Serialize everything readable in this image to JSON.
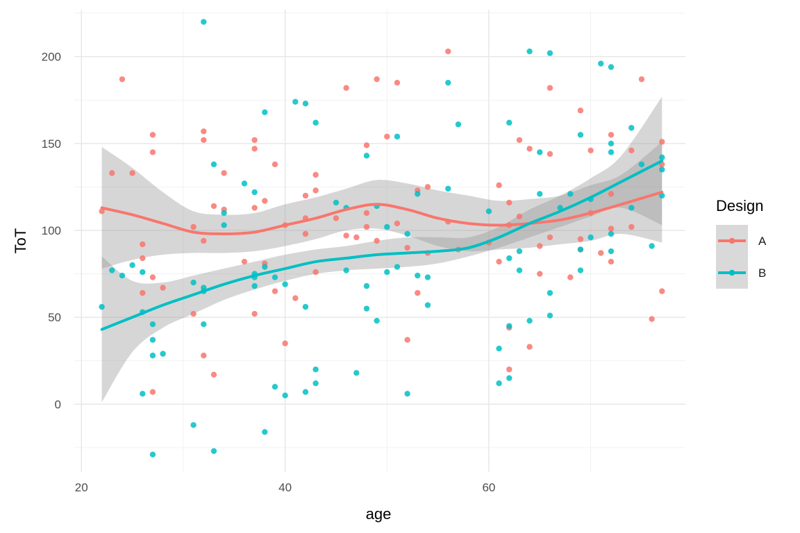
{
  "chart_data": {
    "type": "scatter",
    "title": "",
    "xlabel": "age",
    "ylabel": "ToT",
    "xlim": [
      19.3,
      79.3
    ],
    "ylim": [
      -39,
      227
    ],
    "x_ticks": [
      20,
      40,
      60
    ],
    "y_ticks": [
      0,
      50,
      100,
      150,
      200
    ],
    "grid": true,
    "legend": {
      "title": "Design",
      "position": "right"
    },
    "series": [
      {
        "name": "A",
        "color": "#F8766D",
        "points": [
          [
            22,
            111
          ],
          [
            23,
            133
          ],
          [
            24,
            187
          ],
          [
            25,
            133
          ],
          [
            26,
            92
          ],
          [
            26,
            84
          ],
          [
            26,
            64
          ],
          [
            27,
            155
          ],
          [
            27,
            145
          ],
          [
            27,
            73
          ],
          [
            27,
            7
          ],
          [
            28,
            67
          ],
          [
            31,
            102
          ],
          [
            31,
            52
          ],
          [
            32,
            157
          ],
          [
            32,
            152
          ],
          [
            32,
            94
          ],
          [
            32,
            28
          ],
          [
            33,
            114
          ],
          [
            33,
            17
          ],
          [
            34,
            133
          ],
          [
            34,
            112
          ],
          [
            36,
            82
          ],
          [
            37,
            152
          ],
          [
            37,
            147
          ],
          [
            37,
            113
          ],
          [
            37,
            52
          ],
          [
            38,
            117
          ],
          [
            38,
            81
          ],
          [
            39,
            138
          ],
          [
            39,
            65
          ],
          [
            40,
            103
          ],
          [
            40,
            35
          ],
          [
            41,
            61
          ],
          [
            42,
            120
          ],
          [
            42,
            107
          ],
          [
            42,
            98
          ],
          [
            43,
            132
          ],
          [
            43,
            123
          ],
          [
            43,
            76
          ],
          [
            45,
            107
          ],
          [
            46,
            182
          ],
          [
            46,
            97
          ],
          [
            47,
            96
          ],
          [
            48,
            149
          ],
          [
            48,
            110
          ],
          [
            48,
            102
          ],
          [
            49,
            187
          ],
          [
            49,
            94
          ],
          [
            50,
            154
          ],
          [
            51,
            185
          ],
          [
            51,
            104
          ],
          [
            52,
            37
          ],
          [
            52,
            90
          ],
          [
            53,
            123
          ],
          [
            53,
            64
          ],
          [
            54,
            125
          ],
          [
            54,
            87
          ],
          [
            56,
            203
          ],
          [
            56,
            105
          ],
          [
            57,
            89
          ],
          [
            60,
            93
          ],
          [
            61,
            126
          ],
          [
            61,
            82
          ],
          [
            62,
            116
          ],
          [
            62,
            103
          ],
          [
            62,
            44
          ],
          [
            62,
            20
          ],
          [
            63,
            152
          ],
          [
            63,
            108
          ],
          [
            64,
            147
          ],
          [
            64,
            33
          ],
          [
            65,
            91
          ],
          [
            65,
            75
          ],
          [
            66,
            182
          ],
          [
            66,
            144
          ],
          [
            66,
            96
          ],
          [
            68,
            73
          ],
          [
            69,
            169
          ],
          [
            69,
            95
          ],
          [
            69,
            89
          ],
          [
            70,
            146
          ],
          [
            70,
            110
          ],
          [
            71,
            87
          ],
          [
            72,
            155
          ],
          [
            72,
            121
          ],
          [
            72,
            101
          ],
          [
            72,
            82
          ],
          [
            74,
            146
          ],
          [
            74,
            102
          ],
          [
            75,
            187
          ],
          [
            76,
            49
          ],
          [
            77,
            151
          ],
          [
            77,
            138
          ],
          [
            77,
            65
          ]
        ],
        "smooth": {
          "x": [
            22,
            25,
            28,
            31,
            34,
            37,
            40,
            43,
            46,
            49,
            52,
            55,
            58,
            61,
            64,
            67,
            70,
            73,
            77
          ],
          "y": [
            113,
            109,
            104,
            99,
            98,
            99,
            103,
            107,
            112,
            115,
            112,
            107,
            104,
            103,
            104,
            106,
            110,
            115,
            122
          ],
          "lower": [
            78,
            83,
            86,
            87,
            87,
            88,
            91,
            95,
            100,
            101,
            97,
            91,
            88,
            89,
            90,
            92,
            94,
            98,
            93
          ],
          "upper": [
            148,
            136,
            122,
            111,
            109,
            110,
            115,
            119,
            124,
            129,
            127,
            123,
            120,
            117,
            118,
            120,
            126,
            132,
            151
          ]
        }
      },
      {
        "name": "B",
        "color": "#00BFC4",
        "points": [
          [
            22,
            56
          ],
          [
            23,
            77
          ],
          [
            24,
            74
          ],
          [
            25,
            80
          ],
          [
            26,
            76
          ],
          [
            26,
            53
          ],
          [
            26,
            6
          ],
          [
            27,
            46
          ],
          [
            27,
            37
          ],
          [
            27,
            28
          ],
          [
            27,
            -29
          ],
          [
            28,
            29
          ],
          [
            31,
            70
          ],
          [
            31,
            -12
          ],
          [
            32,
            220
          ],
          [
            32,
            67
          ],
          [
            32,
            65
          ],
          [
            32,
            46
          ],
          [
            33,
            138
          ],
          [
            33,
            -27
          ],
          [
            34,
            110
          ],
          [
            34,
            103
          ],
          [
            36,
            127
          ],
          [
            37,
            122
          ],
          [
            37,
            75
          ],
          [
            37,
            73
          ],
          [
            37,
            68
          ],
          [
            38,
            168
          ],
          [
            38,
            79
          ],
          [
            38,
            -16
          ],
          [
            39,
            73
          ],
          [
            39,
            10
          ],
          [
            40,
            69
          ],
          [
            40,
            5
          ],
          [
            41,
            174
          ],
          [
            42,
            173
          ],
          [
            42,
            56
          ],
          [
            42,
            7
          ],
          [
            43,
            162
          ],
          [
            43,
            20
          ],
          [
            43,
            12
          ],
          [
            45,
            116
          ],
          [
            46,
            113
          ],
          [
            46,
            77
          ],
          [
            47,
            18
          ],
          [
            48,
            143
          ],
          [
            48,
            68
          ],
          [
            48,
            55
          ],
          [
            49,
            114
          ],
          [
            49,
            48
          ],
          [
            50,
            102
          ],
          [
            50,
            76
          ],
          [
            51,
            154
          ],
          [
            51,
            79
          ],
          [
            52,
            98
          ],
          [
            52,
            6
          ],
          [
            53,
            121
          ],
          [
            53,
            74
          ],
          [
            54,
            73
          ],
          [
            54,
            57
          ],
          [
            56,
            185
          ],
          [
            56,
            124
          ],
          [
            57,
            161
          ],
          [
            60,
            111
          ],
          [
            61,
            32
          ],
          [
            61,
            12
          ],
          [
            62,
            162
          ],
          [
            62,
            84
          ],
          [
            62,
            45
          ],
          [
            62,
            15
          ],
          [
            63,
            88
          ],
          [
            63,
            77
          ],
          [
            64,
            203
          ],
          [
            64,
            48
          ],
          [
            65,
            145
          ],
          [
            65,
            121
          ],
          [
            66,
            202
          ],
          [
            66,
            64
          ],
          [
            66,
            51
          ],
          [
            67,
            113
          ],
          [
            68,
            121
          ],
          [
            69,
            155
          ],
          [
            69,
            89
          ],
          [
            69,
            77
          ],
          [
            70,
            118
          ],
          [
            70,
            96
          ],
          [
            71,
            196
          ],
          [
            72,
            194
          ],
          [
            72,
            150
          ],
          [
            72,
            145
          ],
          [
            72,
            98
          ],
          [
            72,
            88
          ],
          [
            74,
            159
          ],
          [
            74,
            113
          ],
          [
            75,
            138
          ],
          [
            76,
            91
          ],
          [
            77,
            142
          ],
          [
            77,
            135
          ],
          [
            77,
            120
          ]
        ],
        "smooth": {
          "x": [
            22,
            25,
            28,
            31,
            34,
            37,
            40,
            43,
            46,
            49,
            52,
            55,
            58,
            61,
            64,
            67,
            70,
            73,
            77
          ],
          "y": [
            43,
            50,
            57,
            63,
            69,
            74,
            78,
            82,
            84,
            86,
            87,
            88,
            90,
            96,
            104,
            111,
            119,
            128,
            140
          ],
          "lower": [
            1,
            30,
            44,
            52,
            60,
            66,
            71,
            75,
            77,
            78,
            79,
            81,
            85,
            90,
            96,
            102,
            108,
            113,
            103
          ],
          "upper": [
            85,
            71,
            70,
            74,
            78,
            82,
            86,
            89,
            91,
            94,
            96,
            96,
            96,
            102,
            112,
            120,
            130,
            143,
            177
          ]
        }
      }
    ]
  }
}
